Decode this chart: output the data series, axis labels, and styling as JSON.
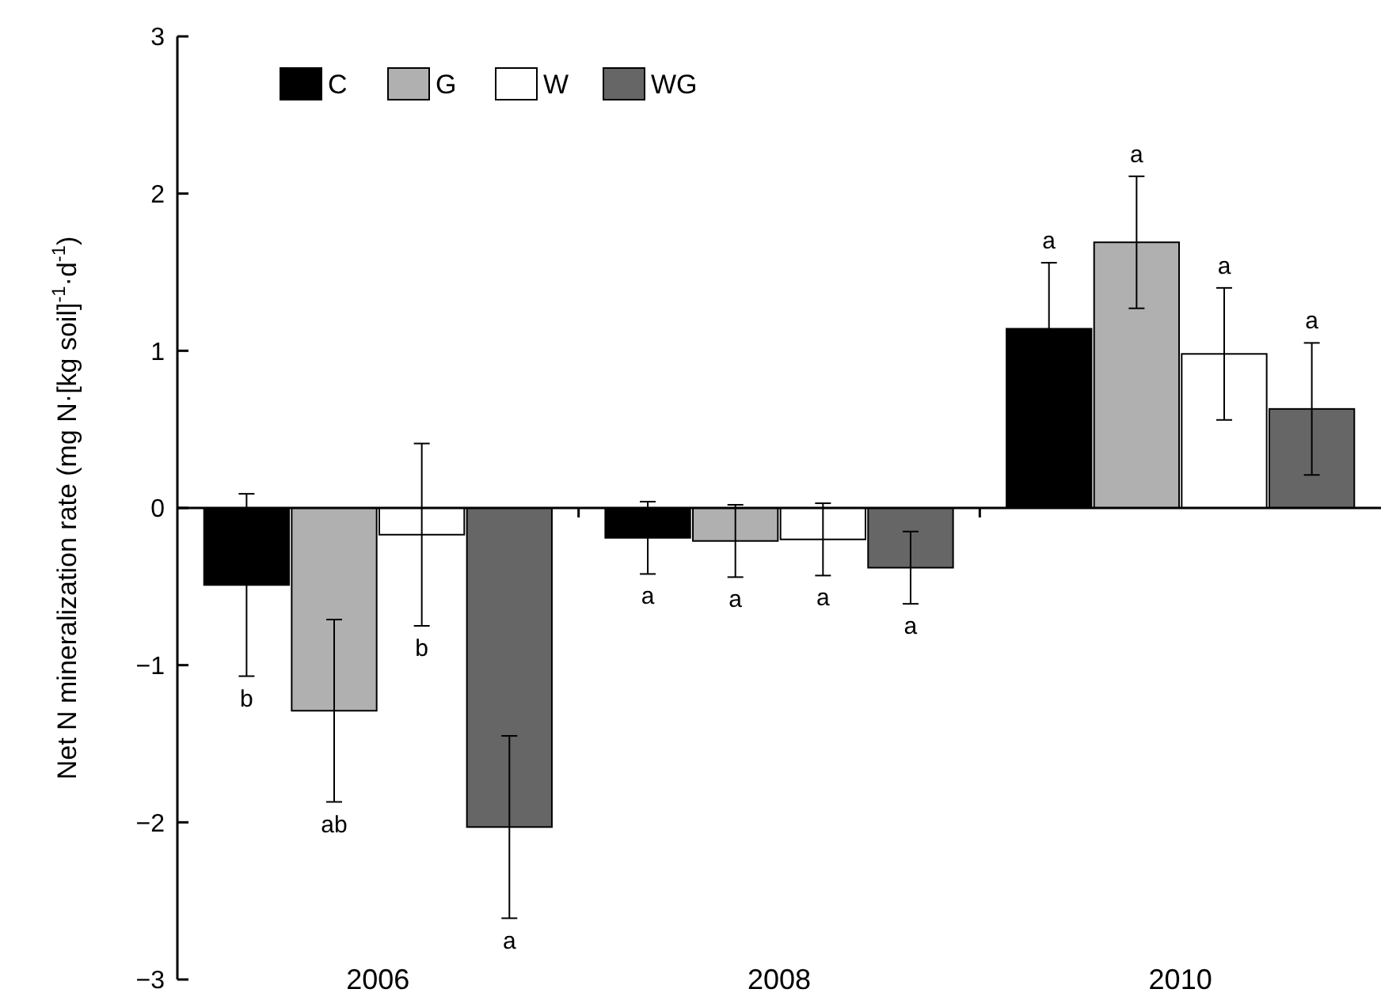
{
  "chart_data": {
    "type": "bar",
    "ylabel": "Net N mineralization rate (mg N·[kg soil]$^{-1}$·d$^{-1}$)",
    "categories": [
      "2006",
      "2008",
      "2010"
    ],
    "series": [
      {
        "name": "C",
        "color": "#000000",
        "values": [
          -0.49,
          -0.19,
          1.14
        ],
        "errors": [
          0.58,
          0.23,
          0.42
        ]
      },
      {
        "name": "G",
        "color": "#b0b0b0",
        "values": [
          -1.29,
          -0.21,
          1.69
        ],
        "errors": [
          0.58,
          0.23,
          0.42
        ]
      },
      {
        "name": "W",
        "color": "#ffffff",
        "values": [
          -0.17,
          -0.2,
          0.98
        ],
        "errors": [
          0.58,
          0.23,
          0.42
        ]
      },
      {
        "name": "WG",
        "color": "#666666",
        "values": [
          -2.03,
          -0.38,
          0.63
        ],
        "errors": [
          0.58,
          0.23,
          0.42
        ]
      }
    ],
    "annotations": [
      "b",
      "ab",
      "b",
      "a",
      "a",
      "a",
      "a",
      "a",
      "a",
      "a",
      "a",
      "a"
    ],
    "ylim": [
      -3,
      3
    ],
    "yticks": [
      {
        "value": -3,
        "label": "−3"
      },
      {
        "value": -2,
        "label": "−2"
      },
      {
        "value": -1,
        "label": "−1"
      },
      0,
      1,
      2,
      3
    ],
    "legend": "top left"
  }
}
